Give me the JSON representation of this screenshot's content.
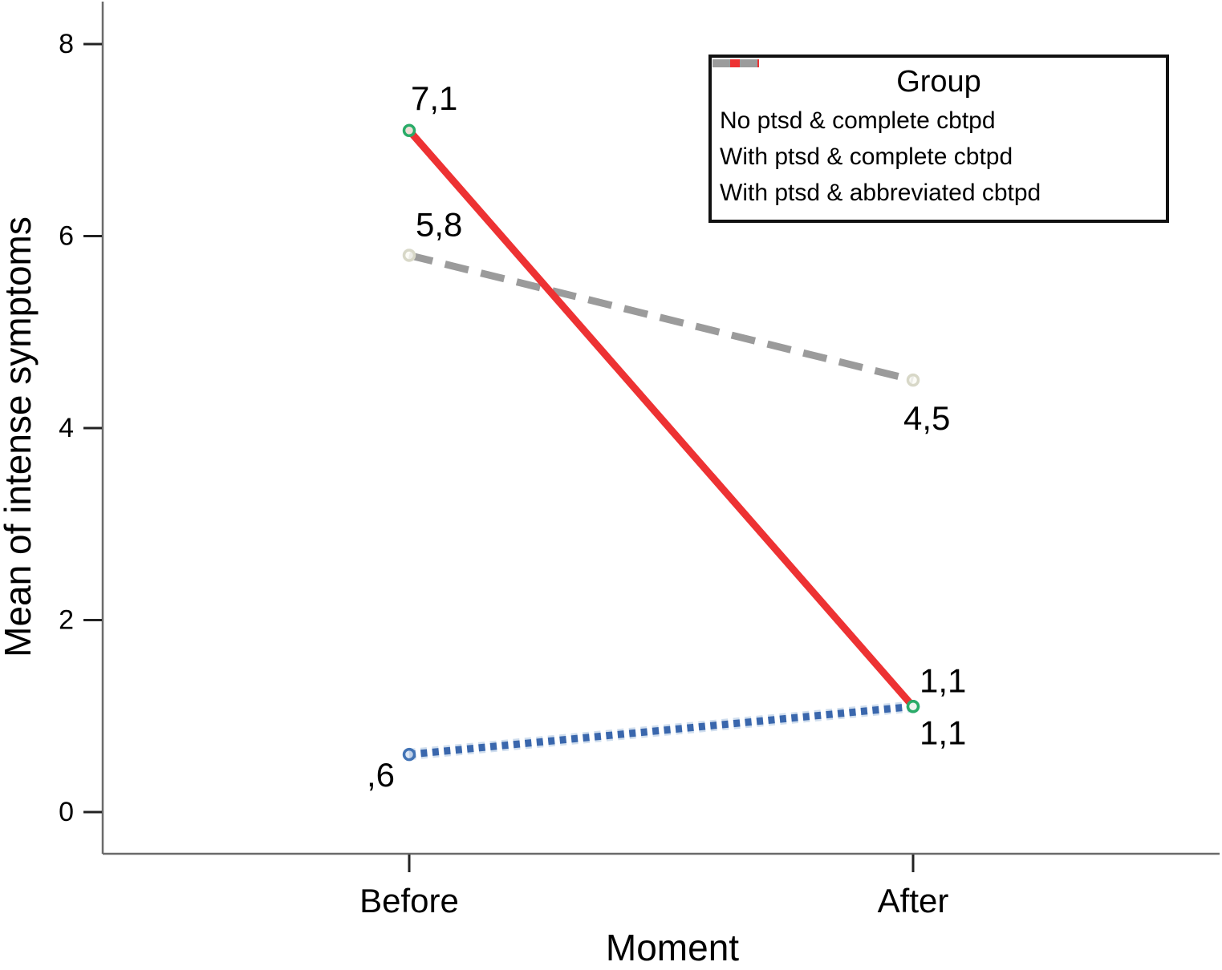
{
  "chart_data": {
    "type": "line",
    "title": "",
    "xlabel": "Moment",
    "ylabel": "Mean of intense symptoms",
    "legend_title": "Group",
    "legend_position": "top-right",
    "grid": false,
    "categories": [
      "Before",
      "After"
    ],
    "y_ticks": [
      0,
      2,
      4,
      6,
      8
    ],
    "ylim": [
      -0.4,
      8.45
    ],
    "series": [
      {
        "name": "No ptsd & complete cbtpd",
        "values": [
          0.6,
          1.1
        ],
        "point_labels": [
          ",6",
          "1,1"
        ],
        "style": "dotted",
        "color": "#3a67ad",
        "halo_color": "#aac2e0",
        "marker_stroke": "#4273b5",
        "marker_fill": "#d8e4f3"
      },
      {
        "name": "With ptsd & complete cbtpd",
        "values": [
          7.1,
          1.1
        ],
        "point_labels": [
          "7,1",
          "1,1"
        ],
        "style": "solid",
        "color": "#ed3233",
        "marker_stroke": "#2aab68",
        "marker_fill": "#f2fbf5"
      },
      {
        "name": "With ptsd & abbreviated cbtpd",
        "values": [
          5.8,
          4.5
        ],
        "point_labels": [
          "5,8",
          "4,5"
        ],
        "style": "dashed",
        "color": "#9b9b9b",
        "marker_stroke": "#d8d8c8",
        "marker_fill": "#fcfcf6"
      }
    ],
    "colors": {
      "axis_line": "#6a6a6a",
      "tick_mark": "#222222",
      "text": "#000000",
      "legend_border": "#111111",
      "background": "#ffffff"
    }
  }
}
